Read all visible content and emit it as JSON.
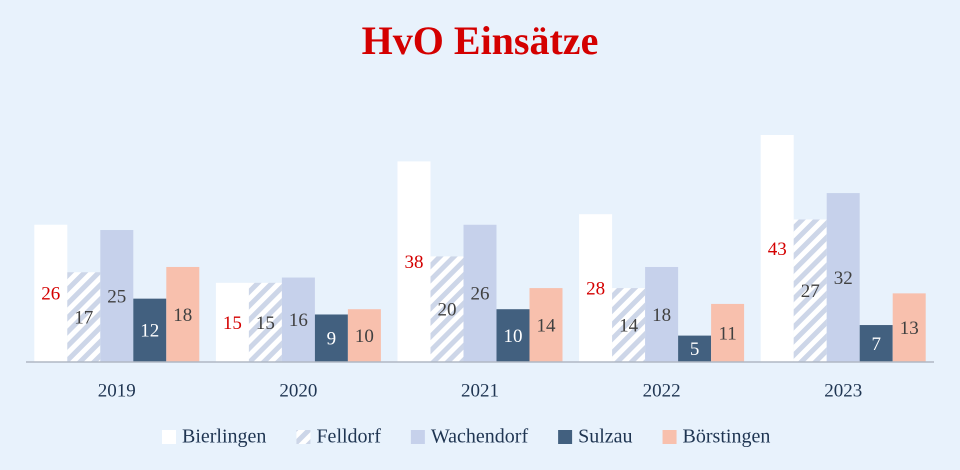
{
  "chart_data": {
    "type": "bar",
    "title": "HvO Einsätze",
    "categories": [
      "2019",
      "2020",
      "2021",
      "2022",
      "2023"
    ],
    "series": [
      {
        "name": "Bierlingen",
        "color": "#ffffff",
        "label_color": "#d40000",
        "values": [
          26,
          15,
          38,
          28,
          43
        ]
      },
      {
        "name": "Felldorf",
        "color": "#cdd6e8",
        "hatch": true,
        "label_color": "#404040",
        "values": [
          17,
          15,
          20,
          14,
          27
        ]
      },
      {
        "name": "Wachendorf",
        "color": "#c6d1eb",
        "label_color": "#404040",
        "values": [
          25,
          16,
          26,
          18,
          32
        ]
      },
      {
        "name": "Sulzau",
        "color": "#42607f",
        "label_color": "#ffffff",
        "values": [
          12,
          9,
          10,
          5,
          7
        ]
      },
      {
        "name": "Börstingen",
        "color": "#f8c0ad",
        "label_color": "#404040",
        "values": [
          18,
          10,
          14,
          11,
          13
        ]
      }
    ],
    "data_labels": true,
    "legend": "bottom"
  }
}
